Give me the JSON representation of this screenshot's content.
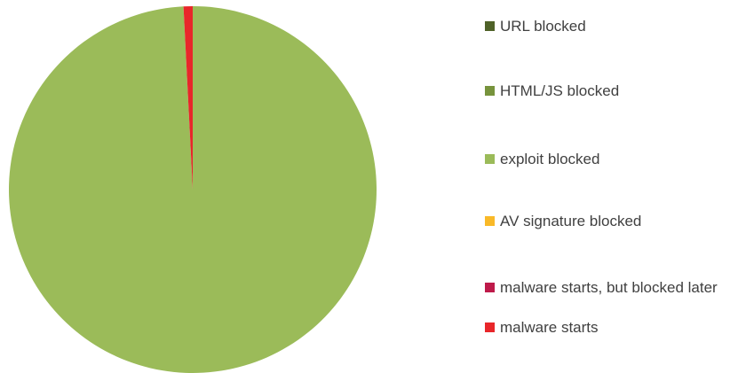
{
  "chart_data": {
    "type": "pie",
    "categories": [
      "URL blocked",
      "HTML/JS blocked",
      "exploit blocked",
      "AV signature blocked",
      "malware starts, but blocked later",
      "malware starts"
    ],
    "values": [
      0,
      0,
      99.2,
      0,
      0,
      0.8
    ],
    "colors": [
      "#4f6228",
      "#77933c",
      "#9bbb59",
      "#f9b928",
      "#be1a4a",
      "#e8262a"
    ],
    "legend": "right"
  }
}
